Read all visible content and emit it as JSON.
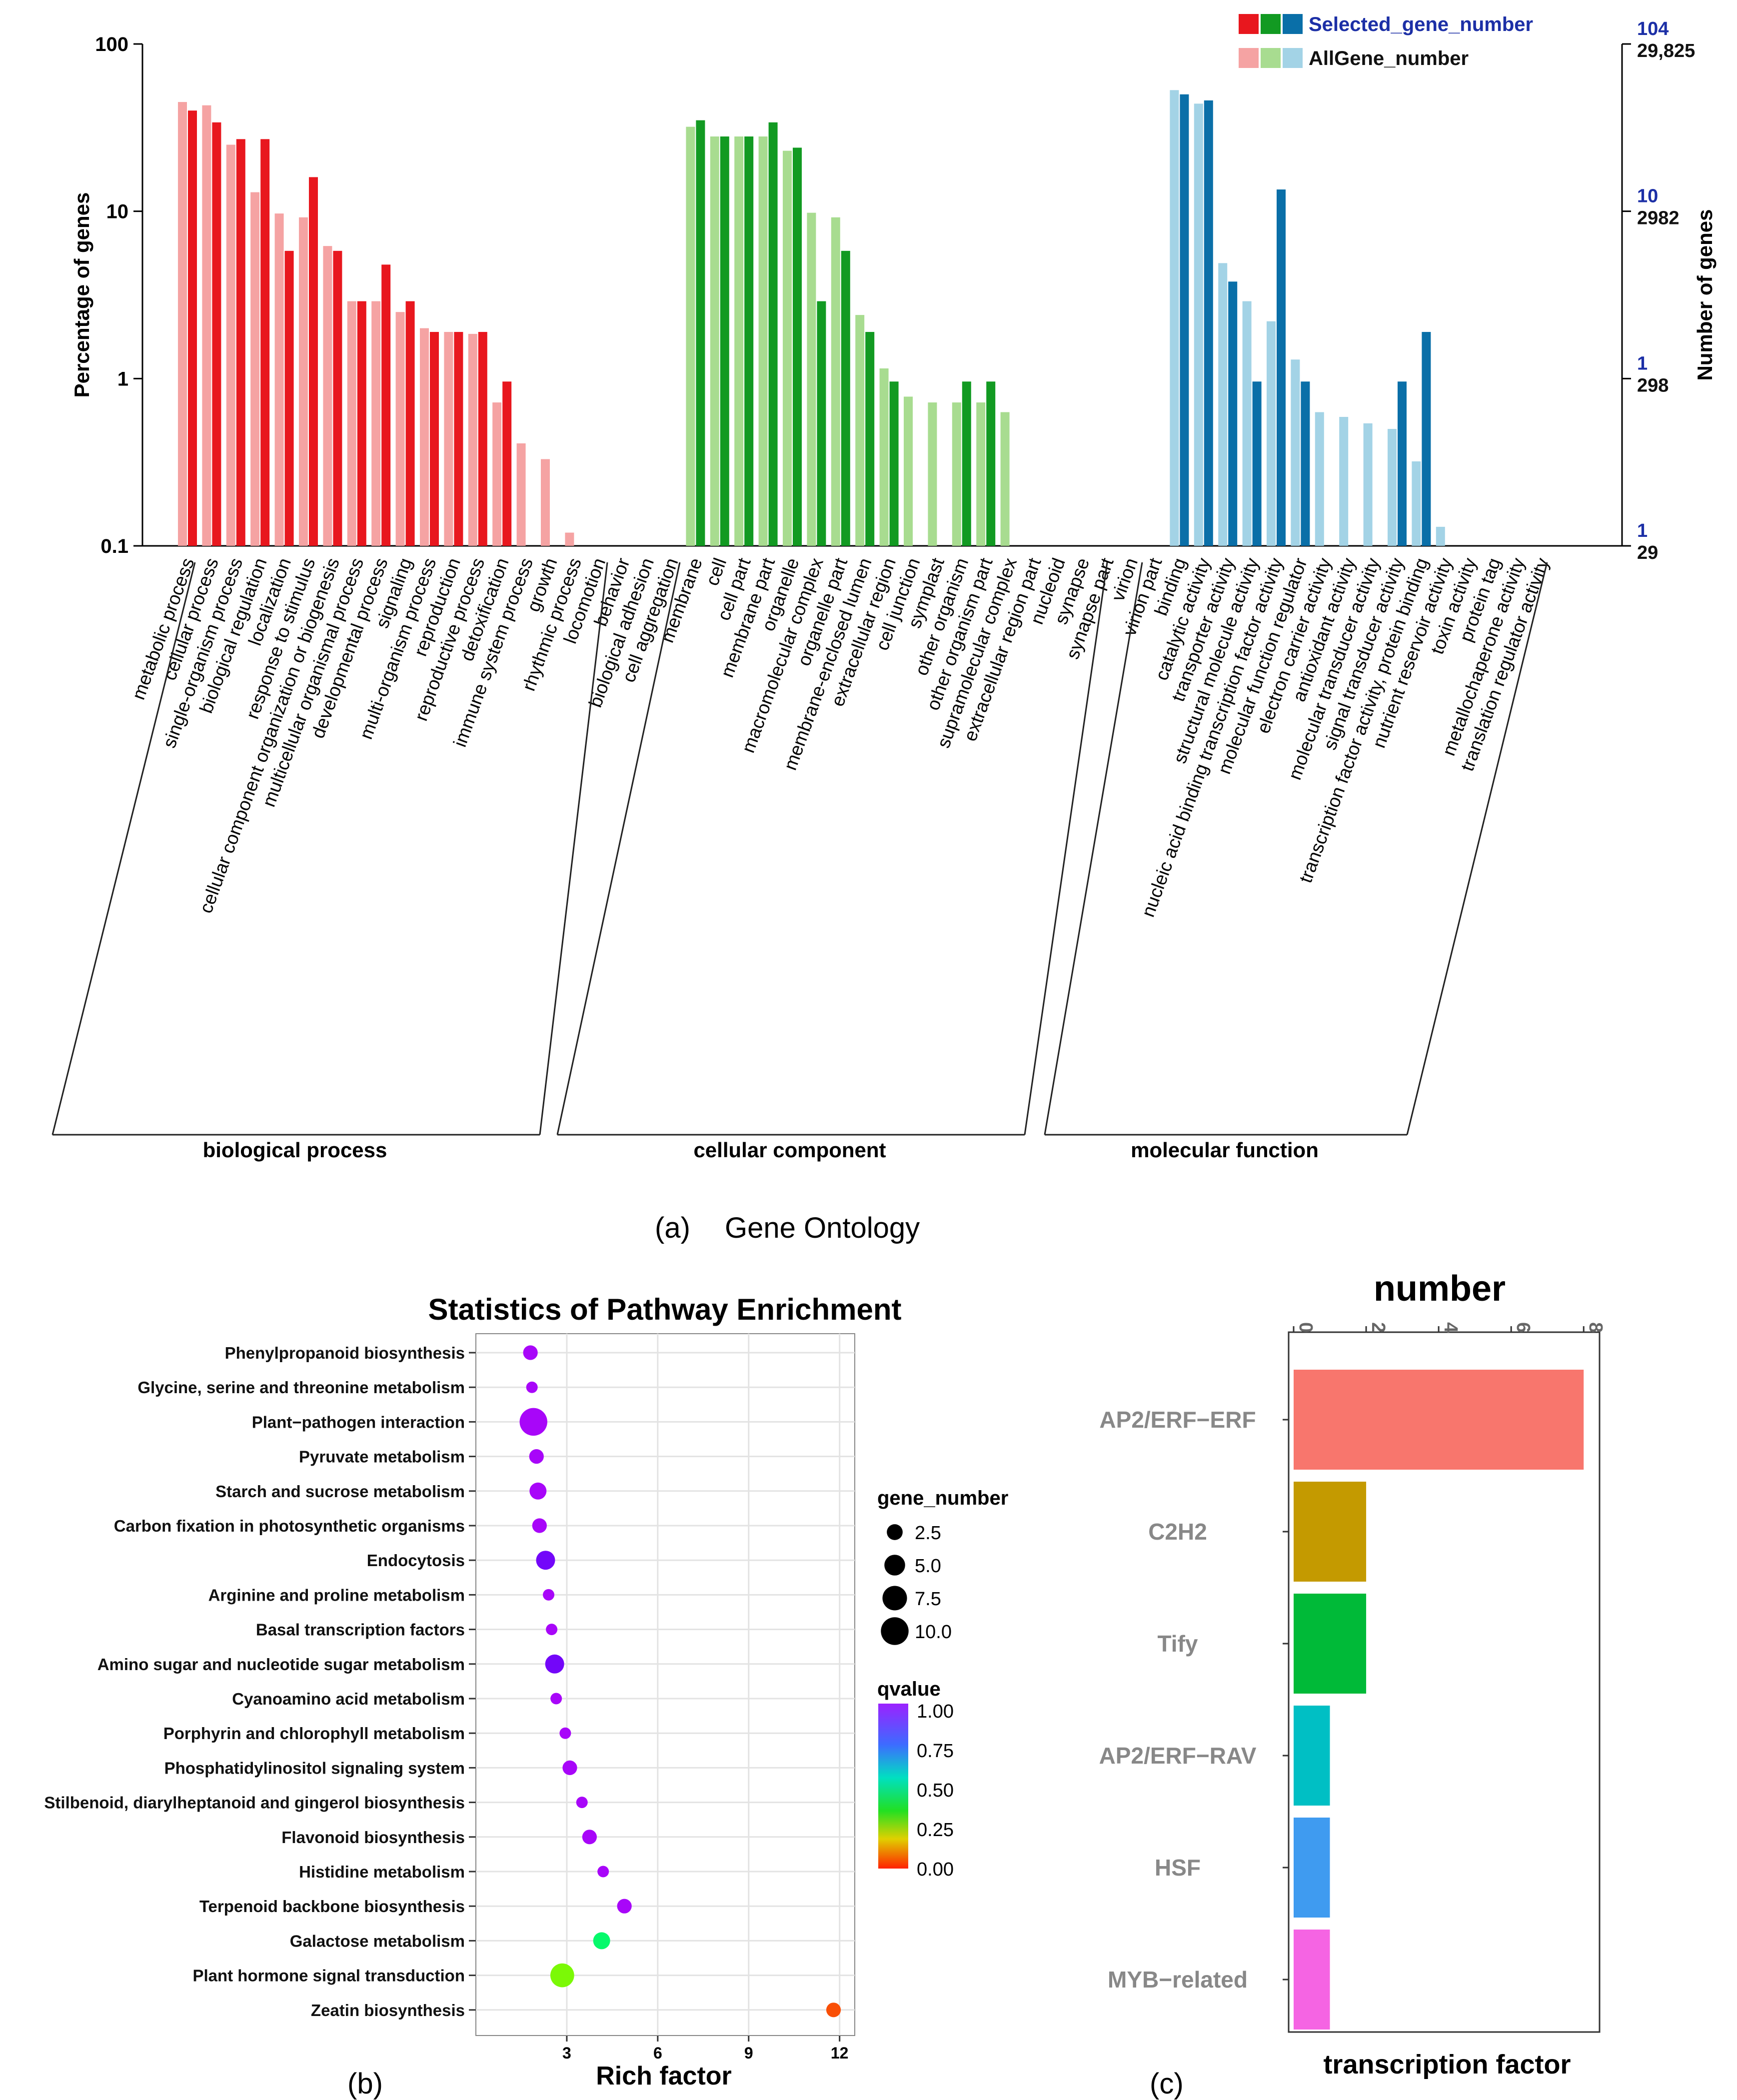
{
  "figure_captions": {
    "a_prefix": "(a)",
    "a_title": "Gene Ontology",
    "b": "(b)",
    "c": "(c)"
  },
  "chart_data": [
    {
      "panel": "a",
      "type": "bar",
      "title": "",
      "xlabel": "",
      "ylabel": "Percentage of genes",
      "ylabel_right": "Number of genes",
      "yscale": "log",
      "ylim": [
        0.1,
        100
      ],
      "yticks": [
        "100",
        "10",
        "1",
        "0.1"
      ],
      "right_ticks_selected": [
        "104",
        "10",
        "1",
        "1"
      ],
      "right_ticks_all": [
        "29,825",
        "2982",
        "298",
        "29"
      ],
      "legend": {
        "position": "top-right",
        "selected_label": "Selected_gene_number",
        "all_label": "AllGene_number",
        "selected_colors": [
          "#e8171e",
          "#129a22",
          "#0a6fa8"
        ],
        "all_colors": [
          "#f5a3a3",
          "#a8dc90",
          "#a3d3e6"
        ]
      },
      "groups": [
        {
          "name": "biological process",
          "color_selected": "#e8171e",
          "color_all": "#f5a3a3"
        },
        {
          "name": "cellular component",
          "color_selected": "#129a22",
          "color_all": "#a8dc90"
        },
        {
          "name": "molecular function",
          "color_selected": "#0a6fa8",
          "color_all": "#a3d3e6"
        }
      ],
      "categories": [
        {
          "label": "metabolic process",
          "group": 0,
          "all": 45,
          "selected": 40
        },
        {
          "label": "cellular process",
          "group": 0,
          "all": 43,
          "selected": 34
        },
        {
          "label": "single-organism process",
          "group": 0,
          "all": 25,
          "selected": 27
        },
        {
          "label": "biological regulation",
          "group": 0,
          "all": 13,
          "selected": 27
        },
        {
          "label": "localization",
          "group": 0,
          "all": 9.7,
          "selected": 5.8
        },
        {
          "label": "response to stimulus",
          "group": 0,
          "all": 9.2,
          "selected": 16
        },
        {
          "label": "cellular component organization or biogenesis",
          "group": 0,
          "all": 6.2,
          "selected": 5.8
        },
        {
          "label": "multicellular organismal process",
          "group": 0,
          "all": 2.9,
          "selected": 2.9
        },
        {
          "label": "developmental process",
          "group": 0,
          "all": 2.9,
          "selected": 4.8
        },
        {
          "label": "signaling",
          "group": 0,
          "all": 2.5,
          "selected": 2.9
        },
        {
          "label": "multi-organism process",
          "group": 0,
          "all": 2.0,
          "selected": 1.9
        },
        {
          "label": "reproduction",
          "group": 0,
          "all": 1.9,
          "selected": 1.9
        },
        {
          "label": "reproductive process",
          "group": 0,
          "all": 1.85,
          "selected": 1.9
        },
        {
          "label": "detoxification",
          "group": 0,
          "all": 0.72,
          "selected": 0.96
        },
        {
          "label": "immune system process",
          "group": 0,
          "all": 0.41,
          "selected": null
        },
        {
          "label": "growth",
          "group": 0,
          "all": 0.33,
          "selected": null
        },
        {
          "label": "rhythmic process",
          "group": 0,
          "all": 0.12,
          "selected": null
        },
        {
          "label": "locomotion",
          "group": 0,
          "all": null,
          "selected": null
        },
        {
          "label": "behavior",
          "group": 0,
          "all": null,
          "selected": null
        },
        {
          "label": "biological adhesion",
          "group": 0,
          "all": null,
          "selected": null
        },
        {
          "label": "cell aggregation",
          "group": 0,
          "all": null,
          "selected": null
        },
        {
          "label": "membrane",
          "group": 1,
          "all": 32,
          "selected": 35
        },
        {
          "label": "cell",
          "group": 1,
          "all": 28,
          "selected": 28
        },
        {
          "label": "cell part",
          "group": 1,
          "all": 28,
          "selected": 28
        },
        {
          "label": "membrane part",
          "group": 1,
          "all": 28,
          "selected": 34
        },
        {
          "label": "organelle",
          "group": 1,
          "all": 23,
          "selected": 24
        },
        {
          "label": "macromolecular complex",
          "group": 1,
          "all": 9.8,
          "selected": 2.9
        },
        {
          "label": "organelle part",
          "group": 1,
          "all": 9.2,
          "selected": 5.8
        },
        {
          "label": "membrane-enclosed lumen",
          "group": 1,
          "all": 2.4,
          "selected": 1.9
        },
        {
          "label": "extracellular region",
          "group": 1,
          "all": 1.15,
          "selected": 0.96
        },
        {
          "label": "cell junction",
          "group": 1,
          "all": 0.78,
          "selected": null
        },
        {
          "label": "symplast",
          "group": 1,
          "all": 0.72,
          "selected": null
        },
        {
          "label": "other organism",
          "group": 1,
          "all": 0.72,
          "selected": 0.96
        },
        {
          "label": "other organism part",
          "group": 1,
          "all": 0.72,
          "selected": 0.96
        },
        {
          "label": "supramolecular complex",
          "group": 1,
          "all": 0.63,
          "selected": null
        },
        {
          "label": "extracellular region part",
          "group": 1,
          "all": null,
          "selected": null
        },
        {
          "label": "nucleoid",
          "group": 1,
          "all": null,
          "selected": null
        },
        {
          "label": "synapse",
          "group": 1,
          "all": null,
          "selected": null
        },
        {
          "label": "synapse part",
          "group": 1,
          "all": null,
          "selected": null
        },
        {
          "label": "virion",
          "group": 1,
          "all": null,
          "selected": null
        },
        {
          "label": "virion part",
          "group": 1,
          "all": null,
          "selected": null
        },
        {
          "label": "binding",
          "group": 2,
          "all": 53,
          "selected": 50
        },
        {
          "label": "catalytic activity",
          "group": 2,
          "all": 44,
          "selected": 46
        },
        {
          "label": "transporter activity",
          "group": 2,
          "all": 4.9,
          "selected": 3.8
        },
        {
          "label": "structural molecule activity",
          "group": 2,
          "all": 2.9,
          "selected": 0.96
        },
        {
          "label": "nucleic acid binding transcription factor activity",
          "group": 2,
          "all": 2.2,
          "selected": 13.5
        },
        {
          "label": "molecular function regulator",
          "group": 2,
          "all": 1.3,
          "selected": 0.96
        },
        {
          "label": "electron carrier activity",
          "group": 2,
          "all": 0.63,
          "selected": null
        },
        {
          "label": "antioxidant activity",
          "group": 2,
          "all": 0.59,
          "selected": null
        },
        {
          "label": "molecular transducer activity",
          "group": 2,
          "all": 0.54,
          "selected": null
        },
        {
          "label": "signal transducer activity",
          "group": 2,
          "all": 0.5,
          "selected": 0.96
        },
        {
          "label": "transcription factor activity, protein binding",
          "group": 2,
          "all": 0.32,
          "selected": 1.9
        },
        {
          "label": "nutrient reservoir activity",
          "group": 2,
          "all": 0.13,
          "selected": null
        },
        {
          "label": "toxin activity",
          "group": 2,
          "all": null,
          "selected": null
        },
        {
          "label": "protein tag",
          "group": 2,
          "all": null,
          "selected": null
        },
        {
          "label": "metallochaperone activity",
          "group": 2,
          "all": null,
          "selected": null
        },
        {
          "label": "translation regulator activity",
          "group": 2,
          "all": null,
          "selected": null
        }
      ]
    },
    {
      "panel": "b",
      "type": "scatter",
      "title": "Statistics of Pathway Enrichment",
      "xlabel": "Rich factor",
      "ylabel": "",
      "xlim": [
        0,
        12.5
      ],
      "xticks": [
        3,
        6,
        9,
        12
      ],
      "grid": true,
      "size_legend_title": "gene_number",
      "size_legend": [
        2.5,
        5.0,
        7.5,
        10.0
      ],
      "size_legend_labels": [
        "2.5",
        "5.0",
        "7.5",
        "10.0"
      ],
      "color_legend_title": "qvalue",
      "color_legend_labels": [
        "1.00",
        "0.75",
        "0.50",
        "0.25",
        "0.00"
      ],
      "points": [
        {
          "pathway": "Phenylpropanoid biosynthesis",
          "rich_factor": 1.8,
          "gene_number": 2,
          "qvalue": 1.0
        },
        {
          "pathway": "Glycine, serine and threonine metabolism",
          "rich_factor": 1.85,
          "gene_number": 1,
          "qvalue": 1.0
        },
        {
          "pathway": "Plant−pathogen interaction",
          "rich_factor": 1.9,
          "gene_number": 10,
          "qvalue": 1.0
        },
        {
          "pathway": "Pyruvate metabolism",
          "rich_factor": 2.0,
          "gene_number": 2,
          "qvalue": 1.0
        },
        {
          "pathway": "Starch and sucrose metabolism",
          "rich_factor": 2.05,
          "gene_number": 3,
          "qvalue": 1.0
        },
        {
          "pathway": "Carbon fixation in photosynthetic organisms",
          "rich_factor": 2.1,
          "gene_number": 2,
          "qvalue": 1.0
        },
        {
          "pathway": "Endocytosis",
          "rich_factor": 2.3,
          "gene_number": 4,
          "qvalue": 0.95
        },
        {
          "pathway": "Arginine and proline metabolism",
          "rich_factor": 2.4,
          "gene_number": 1,
          "qvalue": 1.0
        },
        {
          "pathway": "Basal transcription factors",
          "rich_factor": 2.5,
          "gene_number": 1,
          "qvalue": 1.0
        },
        {
          "pathway": "Amino sugar and nucleotide sugar metabolism",
          "rich_factor": 2.6,
          "gene_number": 4,
          "qvalue": 0.95
        },
        {
          "pathway": "Cyanoamino acid metabolism",
          "rich_factor": 2.65,
          "gene_number": 1,
          "qvalue": 1.0
        },
        {
          "pathway": "Porphyrin and chlorophyll metabolism",
          "rich_factor": 2.95,
          "gene_number": 1,
          "qvalue": 1.0
        },
        {
          "pathway": "Phosphatidylinositol signaling system",
          "rich_factor": 3.1,
          "gene_number": 2,
          "qvalue": 1.0
        },
        {
          "pathway": "Stilbenoid, diarylheptanoid and gingerol biosynthesis",
          "rich_factor": 3.5,
          "gene_number": 1,
          "qvalue": 1.0
        },
        {
          "pathway": "Flavonoid biosynthesis",
          "rich_factor": 3.75,
          "gene_number": 2,
          "qvalue": 1.0
        },
        {
          "pathway": "Histidine metabolism",
          "rich_factor": 4.2,
          "gene_number": 1,
          "qvalue": 1.0
        },
        {
          "pathway": "Terpenoid backbone biosynthesis",
          "rich_factor": 4.9,
          "gene_number": 2,
          "qvalue": 1.0
        },
        {
          "pathway": "Galactose metabolism",
          "rich_factor": 4.15,
          "gene_number": 3,
          "qvalue": 0.5
        },
        {
          "pathway": "Plant hormone signal transduction",
          "rich_factor": 2.85,
          "gene_number": 7,
          "qvalue": 0.3
        },
        {
          "pathway": "Zeatin biosynthesis",
          "rich_factor": 11.8,
          "gene_number": 2,
          "qvalue": 0.03
        }
      ]
    },
    {
      "panel": "c",
      "type": "bar",
      "orientation": "horizontal",
      "title": "number",
      "xlabel": "transcription factor",
      "xlim": [
        0,
        8.3
      ],
      "ticks": [
        0,
        2,
        4,
        6,
        8
      ],
      "tick_labels": [
        "0",
        "2",
        "4",
        "6",
        "8"
      ],
      "categories": [
        "AP2/ERF−ERF",
        "C2H2",
        "Tify",
        "AP2/ERF−RAV",
        "HSF",
        "MYB−related"
      ],
      "values": [
        8,
        2,
        2,
        1,
        1,
        1
      ],
      "colors": [
        "#f8766d",
        "#c49a00",
        "#00ba38",
        "#00bfc4",
        "#3f9bf0",
        "#f564e3"
      ]
    }
  ]
}
